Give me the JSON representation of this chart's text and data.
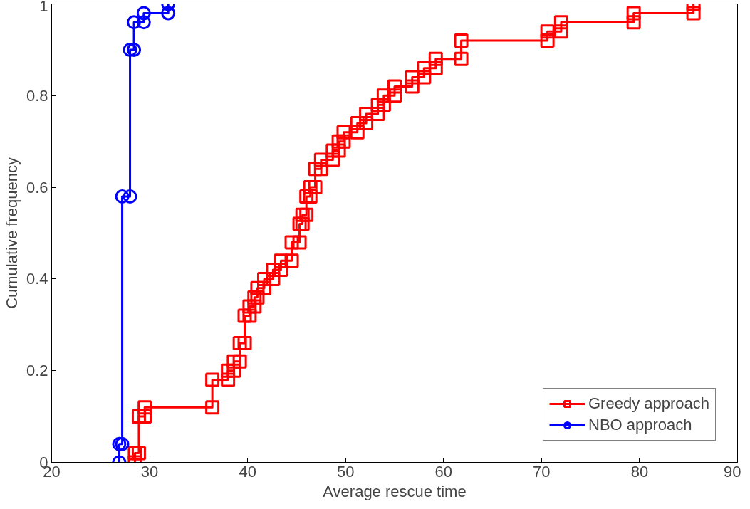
{
  "chart_data": {
    "type": "line",
    "xlabel": "Average rescue time",
    "ylabel": "Cumulative frequency",
    "xlim": [
      20,
      90
    ],
    "xticks": [
      20,
      30,
      40,
      50,
      60,
      70,
      80,
      90
    ],
    "ylim": [
      0,
      1
    ],
    "yticks": [
      0,
      0.2,
      0.4,
      0.6,
      0.8,
      1
    ],
    "grid": false,
    "legend": "bottom right",
    "line_style": "solid",
    "series": [
      {
        "name": "Greedy approach",
        "color": "#ff0000",
        "marker": "square",
        "x": [
          28.5,
          28.5,
          28.9,
          28.9,
          29.5,
          29.5,
          36.4,
          36.4,
          38.0,
          38.0,
          38.6,
          38.6,
          39.2,
          39.2,
          39.7,
          39.7,
          40.2,
          40.2,
          40.7,
          40.7,
          41.0,
          41.0,
          41.7,
          41.7,
          42.6,
          42.6,
          43.4,
          43.4,
          44.5,
          44.5,
          45.3,
          45.3,
          45.6,
          45.6,
          46.0,
          46.0,
          46.4,
          46.4,
          46.9,
          46.9,
          47.5,
          47.5,
          48.7,
          48.7,
          49.3,
          49.3,
          49.8,
          49.8,
          51.2,
          51.2,
          52.1,
          52.1,
          53.3,
          53.3,
          53.9,
          53.9,
          55.0,
          55.0,
          56.8,
          56.8,
          58.0,
          58.0,
          59.2,
          59.2,
          61.8,
          61.8,
          70.6,
          70.6,
          72.0,
          72.0,
          79.4,
          79.4,
          85.5,
          85.5
        ],
        "values": [
          0,
          0.02,
          0.02,
          0.1,
          0.1,
          0.12,
          0.12,
          0.18,
          0.18,
          0.2,
          0.2,
          0.22,
          0.22,
          0.26,
          0.26,
          0.32,
          0.32,
          0.34,
          0.34,
          0.36,
          0.36,
          0.38,
          0.38,
          0.4,
          0.4,
          0.42,
          0.42,
          0.44,
          0.44,
          0.48,
          0.48,
          0.52,
          0.52,
          0.54,
          0.54,
          0.58,
          0.58,
          0.6,
          0.6,
          0.64,
          0.64,
          0.66,
          0.66,
          0.68,
          0.68,
          0.7,
          0.7,
          0.72,
          0.72,
          0.74,
          0.74,
          0.76,
          0.76,
          0.78,
          0.78,
          0.8,
          0.8,
          0.82,
          0.82,
          0.84,
          0.84,
          0.86,
          0.86,
          0.88,
          0.88,
          0.92,
          0.92,
          0.94,
          0.94,
          0.96,
          0.96,
          0.98,
          0.98,
          1.0
        ]
      },
      {
        "name": "NBO approach",
        "color": "#0000ff",
        "marker": "circle",
        "x": [
          26.9,
          26.9,
          27.2,
          27.2,
          28.0,
          28.0,
          28.4,
          28.4,
          29.4,
          29.4,
          31.9,
          31.9
        ],
        "values": [
          0,
          0.04,
          0.04,
          0.58,
          0.58,
          0.9,
          0.9,
          0.96,
          0.96,
          0.98,
          0.98,
          1.0
        ]
      }
    ]
  }
}
